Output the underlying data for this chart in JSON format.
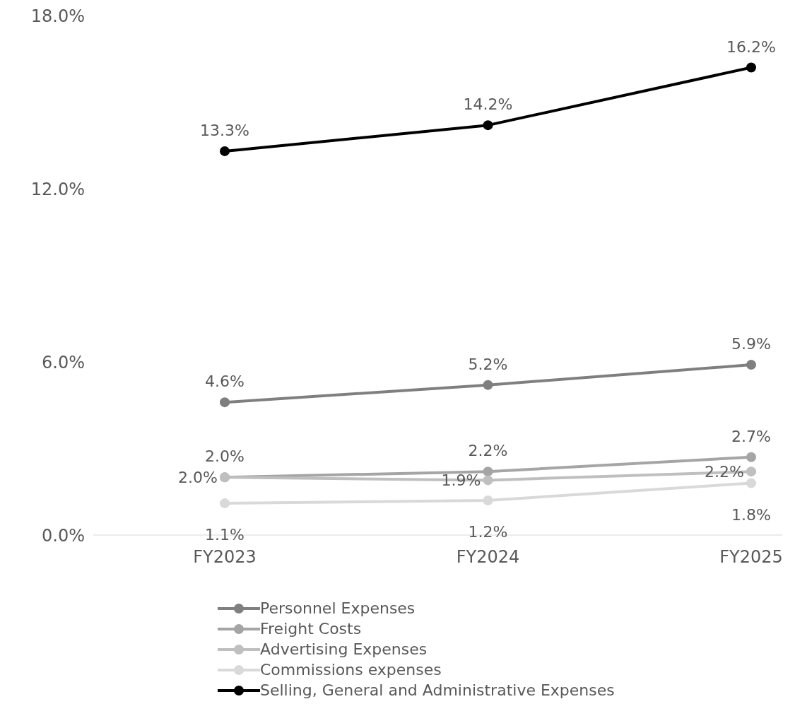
{
  "chart_data": {
    "type": "line",
    "categories": [
      "FY2023",
      "FY2024",
      "FY2025"
    ],
    "series": [
      {
        "name": "Personnel Expenses",
        "color": "#7f7f7f",
        "values": [
          4.6,
          5.2,
          5.9
        ],
        "value_labels": [
          "4.6%",
          "5.2%",
          "5.9%"
        ]
      },
      {
        "name": "Freight Costs",
        "color": "#a5a5a5",
        "values": [
          2.0,
          2.2,
          2.7
        ],
        "value_labels": [
          "2.0%",
          "2.2%",
          "2.7%"
        ]
      },
      {
        "name": "Advertising Expenses",
        "color": "#bfbfbf",
        "values": [
          2.0,
          1.9,
          2.2
        ],
        "value_labels": [
          "2.0%",
          "1.9%",
          "2.2%"
        ]
      },
      {
        "name": "Commissions expenses",
        "color": "#d9d9d9",
        "values": [
          1.1,
          1.2,
          1.8
        ],
        "value_labels": [
          "1.1%",
          "1.2%",
          "1.8%"
        ]
      },
      {
        "name": "Selling, General and Administrative Expenses",
        "color": "#000000",
        "values": [
          13.3,
          14.2,
          16.2
        ],
        "value_labels": [
          "13.3%",
          "14.2%",
          "16.2%"
        ]
      }
    ],
    "ylim": [
      0,
      18
    ],
    "yticks": [
      {
        "value": 0,
        "label": "0.0%"
      },
      {
        "value": 6,
        "label": "6.0%"
      },
      {
        "value": 12,
        "label": "12.0%"
      },
      {
        "value": 18,
        "label": "18.0%"
      }
    ],
    "grid": false,
    "legend": "bottom",
    "marker": "circle",
    "line_style": "solid"
  }
}
